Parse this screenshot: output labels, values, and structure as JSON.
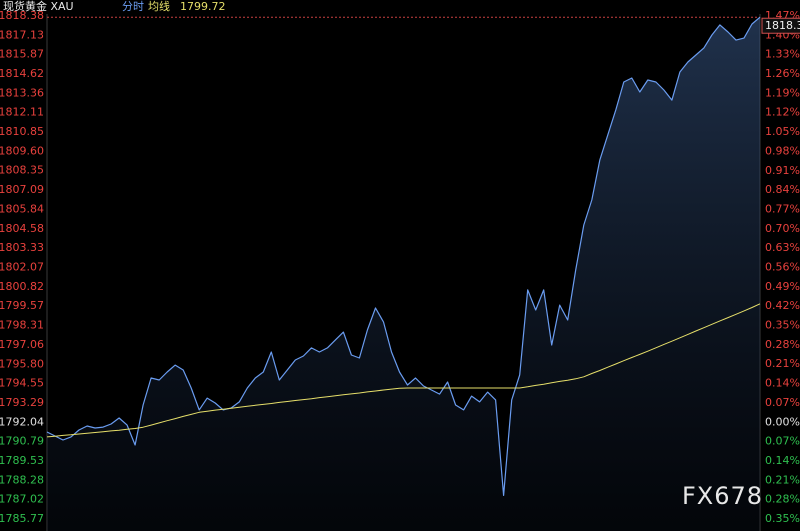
{
  "chart_data": {
    "type": "line",
    "title": "现货黄金 XAU",
    "watermark": "FX678",
    "series": [
      {
        "name": "分时",
        "color": "#6a9cf0",
        "values": [
          1791.41,
          1791.15,
          1790.89,
          1791.09,
          1791.54,
          1791.8,
          1791.67,
          1791.73,
          1791.93,
          1792.32,
          1791.86,
          1790.57,
          1793.16,
          1794.91,
          1794.78,
          1795.3,
          1795.75,
          1795.43,
          1794.26,
          1792.84,
          1793.61,
          1793.29,
          1792.84,
          1792.97,
          1793.36,
          1794.26,
          1794.91,
          1795.3,
          1796.6,
          1794.78,
          1795.43,
          1796.08,
          1796.34,
          1796.86,
          1796.6,
          1796.86,
          1797.38,
          1797.89,
          1796.4,
          1796.21,
          1798.02,
          1799.45,
          1798.54,
          1796.6,
          1795.3,
          1794.46,
          1794.91,
          1794.39,
          1794.13,
          1793.87,
          1794.65,
          1793.16,
          1792.84,
          1793.74,
          1793.36,
          1794.0,
          1793.49,
          1787.3,
          1793.49,
          1795.11,
          1800.62,
          1799.32,
          1800.62,
          1797.05,
          1799.64,
          1798.67,
          1801.91,
          1804.83,
          1806.45,
          1809.04,
          1810.67,
          1812.29,
          1814.1,
          1814.36,
          1813.45,
          1814.23,
          1814.1,
          1813.58,
          1812.93,
          1814.75,
          1815.4,
          1815.85,
          1816.31,
          1817.15,
          1817.8,
          1817.34,
          1816.82,
          1816.95,
          1817.86,
          1818.3
        ]
      },
      {
        "name": "均线",
        "color": "#e6df6a",
        "values": [
          1791.09,
          1791.14,
          1791.19,
          1791.23,
          1791.28,
          1791.33,
          1791.38,
          1791.43,
          1791.48,
          1791.53,
          1791.59,
          1791.64,
          1791.72,
          1791.86,
          1792.0,
          1792.14,
          1792.28,
          1792.42,
          1792.55,
          1792.69,
          1792.76,
          1792.83,
          1792.89,
          1792.95,
          1793.01,
          1793.08,
          1793.14,
          1793.2,
          1793.26,
          1793.33,
          1793.39,
          1793.45,
          1793.51,
          1793.57,
          1793.64,
          1793.7,
          1793.76,
          1793.82,
          1793.88,
          1793.94,
          1794.01,
          1794.07,
          1794.13,
          1794.19,
          1794.25,
          1794.26,
          1794.26,
          1794.26,
          1794.26,
          1794.26,
          1794.26,
          1794.26,
          1794.26,
          1794.26,
          1794.26,
          1794.26,
          1794.26,
          1794.26,
          1794.26,
          1794.26,
          1794.34,
          1794.43,
          1794.51,
          1794.6,
          1794.69,
          1794.77,
          1794.86,
          1794.99,
          1795.2,
          1795.4,
          1795.61,
          1795.82,
          1796.03,
          1796.24,
          1796.44,
          1796.65,
          1796.87,
          1797.09,
          1797.3,
          1797.52,
          1797.74,
          1797.96,
          1798.17,
          1798.39,
          1798.61,
          1798.83,
          1799.04,
          1799.26,
          1799.48,
          1799.72
        ]
      }
    ],
    "ylim": [
      1785.77,
      1818.38
    ],
    "yticks": [
      1818.38,
      1817.13,
      1815.87,
      1814.62,
      1813.36,
      1812.11,
      1810.85,
      {
        "value": 1809.6,
        "label": "1809.60"
      },
      1808.35,
      1807.09,
      1805.84,
      1804.58,
      1803.33,
      1802.07,
      1800.82,
      1799.57,
      1798.31,
      1797.06,
      {
        "value": 1795.8,
        "label": "1795.80"
      },
      1794.55,
      1793.29,
      1792.04,
      1790.79,
      1789.53,
      1788.28,
      1787.02,
      1785.77
    ],
    "y2lim": [
      -0.35,
      1.47
    ],
    "y2ticks": [
      {
        "value": 1.47,
        "label": "1.47%"
      },
      {
        "value": 1.4,
        "label": "1.40%"
      },
      {
        "value": 1.33,
        "label": "1.33%"
      },
      {
        "value": 1.26,
        "label": "1.26%"
      },
      {
        "value": 1.19,
        "label": "1.19%"
      },
      {
        "value": 1.12,
        "label": "1.12%"
      },
      {
        "value": 1.05,
        "label": "1.05%"
      },
      {
        "value": 0.98,
        "label": "0.98%"
      },
      {
        "value": 0.91,
        "label": "0.91%"
      },
      {
        "value": 0.84,
        "label": "0.84%"
      },
      {
        "value": 0.77,
        "label": "0.77%"
      },
      {
        "value": 0.7,
        "label": "0.70%"
      },
      {
        "value": 0.63,
        "label": "0.63%"
      },
      {
        "value": 0.56,
        "label": "0.56%"
      },
      {
        "value": 0.49,
        "label": "0.49%"
      },
      {
        "value": 0.42,
        "label": "0.42%"
      },
      {
        "value": 0.35,
        "label": "0.35%"
      },
      {
        "value": 0.28,
        "label": "0.28%"
      },
      {
        "value": 0.21,
        "label": "0.21%"
      },
      {
        "value": 0.14,
        "label": "0.14%"
      },
      {
        "value": 0.07,
        "label": "0.07%"
      },
      {
        "value": 0,
        "label": "0.00%"
      },
      {
        "value": -0.07,
        "label": "0.07%"
      },
      {
        "value": -0.14,
        "label": "0.14%"
      },
      {
        "value": -0.21,
        "label": "0.21%"
      },
      {
        "value": -0.28,
        "label": "0.28%"
      },
      {
        "value": -0.35,
        "label": "0.35%"
      }
    ]
  }
}
